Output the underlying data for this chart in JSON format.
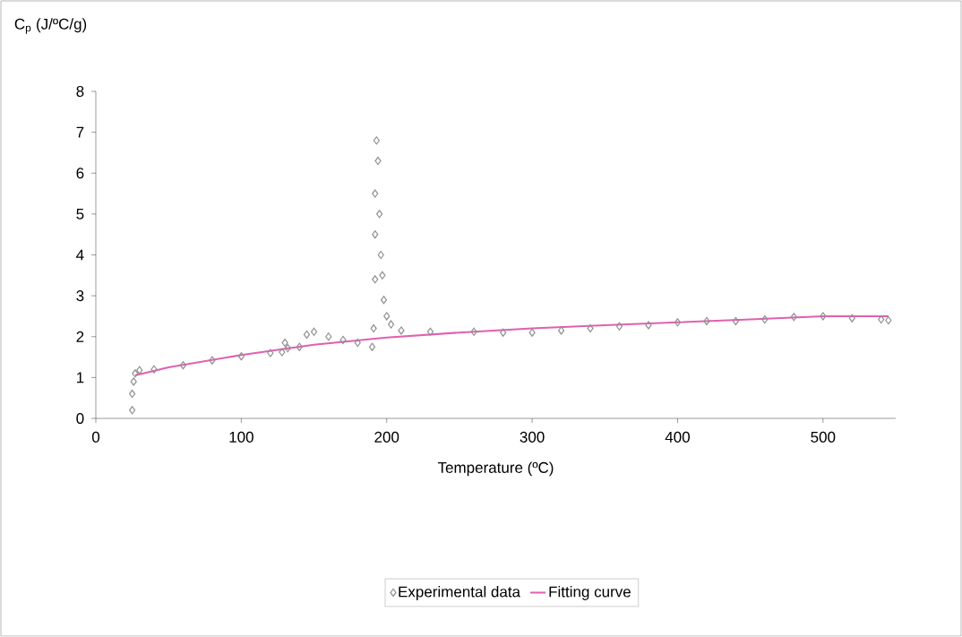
{
  "chart_data": {
    "type": "scatter",
    "xlabel": "Temperature (ºC)",
    "ylabel": "C$_{p}$ (J/ºC/g)",
    "xlim": [
      0,
      550
    ],
    "xticks": [
      0,
      100,
      200,
      300,
      400,
      500
    ],
    "ylim": [
      0,
      8
    ],
    "yticks": [
      0,
      1,
      2,
      3,
      4,
      5,
      6,
      7,
      8
    ],
    "grid": false,
    "legend": "bottom",
    "series": [
      {
        "name": "Experimental data",
        "marker": "diamond",
        "color": "#909090",
        "x": [
          25,
          25,
          26,
          27,
          30,
          40,
          60,
          80,
          100,
          120,
          128,
          130,
          132,
          140,
          145,
          150,
          160,
          170,
          180,
          190,
          191,
          192,
          192,
          192,
          193,
          194,
          195,
          196,
          197,
          198,
          200,
          203,
          210,
          230,
          260,
          280,
          300,
          320,
          340,
          360,
          380,
          400,
          420,
          440,
          460,
          480,
          500,
          520,
          540,
          545
        ],
        "values": [
          0.2,
          0.6,
          0.9,
          1.1,
          1.18,
          1.2,
          1.3,
          1.42,
          1.52,
          1.6,
          1.62,
          1.85,
          1.72,
          1.75,
          2.05,
          2.12,
          2.0,
          1.92,
          1.85,
          1.75,
          2.2,
          3.4,
          4.5,
          5.5,
          6.8,
          6.3,
          5.0,
          4.0,
          3.5,
          2.9,
          2.5,
          2.3,
          2.15,
          2.12,
          2.12,
          2.1,
          2.1,
          2.15,
          2.2,
          2.25,
          2.28,
          2.35,
          2.38,
          2.38,
          2.42,
          2.48,
          2.5,
          2.45,
          2.42,
          2.4
        ]
      },
      {
        "name": "Fitting curve",
        "type": "line",
        "marker": "none",
        "color": "#e060b0",
        "x": [
          27,
          50,
          100,
          150,
          200,
          250,
          300,
          350,
          400,
          450,
          500,
          545
        ],
        "values": [
          1.05,
          1.25,
          1.55,
          1.8,
          1.98,
          2.1,
          2.2,
          2.28,
          2.35,
          2.42,
          2.5,
          2.5
        ]
      }
    ]
  }
}
